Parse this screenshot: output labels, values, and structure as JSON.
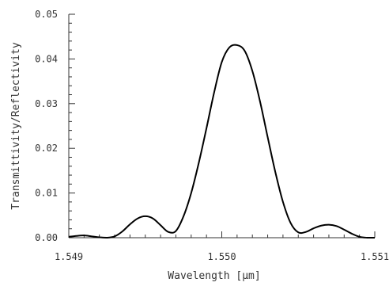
{
  "chart_data": {
    "type": "line",
    "title": "",
    "xlabel": "Wavelength [µm]",
    "ylabel": "Transmittivity/Reflectivity",
    "xlim": [
      1.549,
      1.551
    ],
    "ylim": [
      0.0,
      0.05
    ],
    "x_ticks": [
      1.549,
      1.55,
      1.551
    ],
    "x_tick_labels": [
      "1.549",
      "1.550",
      "1.551"
    ],
    "y_ticks": [
      0.0,
      0.01,
      0.02,
      0.03,
      0.04,
      0.05
    ],
    "y_tick_labels": [
      "0.00",
      "0.01",
      "0.02",
      "0.03",
      "0.04",
      "0.05"
    ],
    "grid": false,
    "line_color": "#000000",
    "axis_color": "#333333",
    "series": [
      {
        "x": [
          1.549,
          1.54905,
          1.5491,
          1.54915,
          1.5492,
          1.54925,
          1.5493,
          1.54935,
          1.5494,
          1.54945,
          1.5495,
          1.54955,
          1.5496,
          1.54965,
          1.5497,
          1.54975,
          1.5498,
          1.54985,
          1.5499,
          1.54995,
          1.55,
          1.55005,
          1.5501,
          1.55015,
          1.5502,
          1.55025,
          1.5503,
          1.55035,
          1.5504,
          1.55045,
          1.5505,
          1.55055,
          1.5506,
          1.55065,
          1.5507,
          1.55075,
          1.5508,
          1.55085,
          1.5509,
          1.55095,
          1.551
        ],
        "y": [
          0.0002,
          0.0004,
          0.0005,
          0.0003,
          0.0001,
          0.0,
          0.0003,
          0.0014,
          0.003,
          0.0043,
          0.0048,
          0.0043,
          0.0028,
          0.0013,
          0.0015,
          0.0048,
          0.01,
          0.0168,
          0.0245,
          0.0325,
          0.0393,
          0.0426,
          0.0431,
          0.0418,
          0.0373,
          0.0305,
          0.0225,
          0.0147,
          0.008,
          0.0033,
          0.0012,
          0.0013,
          0.0021,
          0.0027,
          0.0029,
          0.0026,
          0.0018,
          0.0009,
          0.0002,
          0.0,
          0.0
        ]
      }
    ]
  }
}
